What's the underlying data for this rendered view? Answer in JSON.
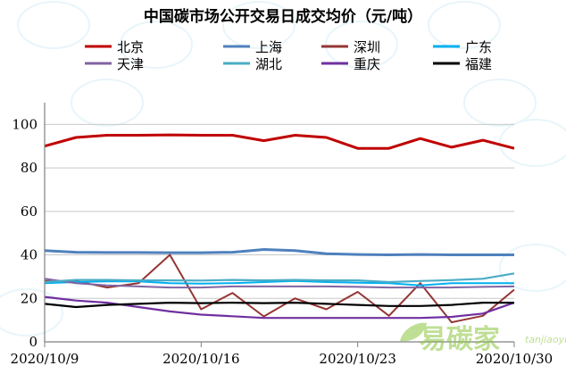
{
  "chart_data": {
    "type": "line",
    "title": "中国碳市场公开交易日成交均价（元/吨）",
    "xlabel": "",
    "ylabel": "",
    "ylim": [
      0,
      110
    ],
    "yticks": [
      0,
      20,
      40,
      60,
      80,
      100
    ],
    "x": [
      "2020/10/9",
      "2020/10/12",
      "2020/10/13",
      "2020/10/14",
      "2020/10/15",
      "2020/10/16",
      "2020/10/19",
      "2020/10/20",
      "2020/10/21",
      "2020/10/22",
      "2020/10/23",
      "2020/10/26",
      "2020/10/27",
      "2020/10/28",
      "2020/10/29",
      "2020/10/30"
    ],
    "xtick_labels": [
      {
        "index": 0,
        "label": "2020/10/9"
      },
      {
        "index": 5,
        "label": "2020/10/16"
      },
      {
        "index": 10,
        "label": "2020/10/23"
      },
      {
        "index": 15,
        "label": "2020/10/30"
      }
    ],
    "grid": "horizontal",
    "legend_position": "top",
    "series": [
      {
        "name": "北京",
        "color": "#c00000",
        "width": 3,
        "values": [
          90,
          94,
          95,
          95,
          95.2,
          95,
          95,
          92.5,
          95,
          94,
          89,
          89,
          93.5,
          89.5,
          92.7,
          89
        ]
      },
      {
        "name": "上海",
        "color": "#4f81bd",
        "width": 3,
        "values": [
          42,
          41.2,
          41.1,
          41.1,
          41,
          41,
          41.2,
          42.5,
          42,
          40.5,
          40.2,
          40,
          40.2,
          40,
          40,
          40
        ]
      },
      {
        "name": "深圳",
        "color": "#943634",
        "width": 2,
        "values": [
          28,
          28,
          25,
          27,
          40,
          15,
          22.5,
          11.7,
          20,
          15,
          23,
          12,
          27,
          9,
          12,
          24
        ]
      },
      {
        "name": "广东",
        "color": "#00b0f0",
        "width": 2,
        "values": [
          27,
          27.5,
          27.8,
          27.8,
          27,
          26.8,
          27,
          27.5,
          28,
          27.5,
          27.2,
          27,
          26,
          27,
          27,
          27
        ]
      },
      {
        "name": "天津",
        "color": "#8064a2",
        "width": 2,
        "values": [
          29,
          27,
          26,
          25.5,
          25,
          25,
          25.5,
          25.5,
          25.5,
          25.5,
          25.3,
          25,
          25,
          25,
          25.3,
          25.5
        ]
      },
      {
        "name": "湖北",
        "color": "#4bacc6",
        "width": 2.2,
        "values": [
          27.5,
          28.5,
          28.5,
          28.3,
          28.3,
          28.2,
          28.5,
          28.3,
          28.5,
          28.3,
          28.3,
          27.5,
          28,
          28.4,
          29,
          31.5
        ]
      },
      {
        "name": "重庆",
        "color": "#7030a0",
        "width": 2.2,
        "values": [
          20.7,
          19,
          18,
          16,
          14,
          12.5,
          11.8,
          11,
          11,
          11,
          11,
          11,
          11,
          11.5,
          13,
          18
        ]
      },
      {
        "name": "福建",
        "color": "#000000",
        "width": 2.2,
        "values": [
          17.5,
          16,
          17,
          17.5,
          18,
          17.8,
          18,
          17.8,
          18,
          17.5,
          17,
          16.5,
          16.5,
          17,
          18,
          18
        ]
      }
    ]
  },
  "watermark": {
    "brand_text": "易碳家",
    "domain_text": "tanjiaoyi"
  }
}
